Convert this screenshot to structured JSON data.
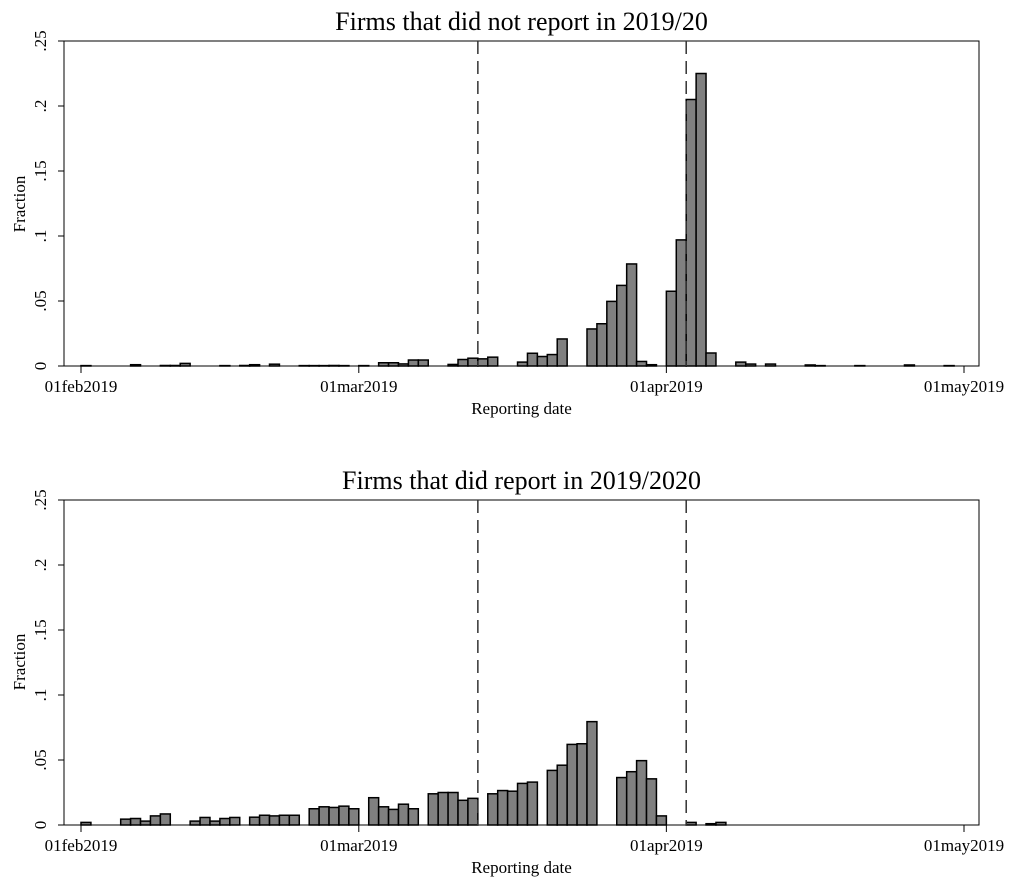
{
  "chart_data": [
    {
      "type": "bar",
      "title": "Firms that did not report in 2019/20",
      "xlabel": "Reporting date",
      "ylabel": "Fraction",
      "ylim": [
        0,
        0.25
      ],
      "yticks": [
        0,
        0.05,
        0.1,
        0.15,
        0.2,
        0.25
      ],
      "ytick_labels": [
        "0",
        ".05",
        ".1",
        ".15",
        ".2",
        ".25"
      ],
      "xlim": [
        "2019-02-01",
        "2019-05-01"
      ],
      "xticks": [
        "2019-02-01",
        "2019-03-01",
        "2019-04-01",
        "2019-05-01"
      ],
      "xtick_labels": [
        "01feb2019",
        "01mar2019",
        "01apr2019",
        "01may2019"
      ],
      "reference_lines": [
        "2019-03-13",
        "2019-04-03"
      ],
      "bar_color": "#808080",
      "x": [
        "2019-02-01",
        "2019-02-02",
        "2019-02-03",
        "2019-02-04",
        "2019-02-05",
        "2019-02-06",
        "2019-02-07",
        "2019-02-08",
        "2019-02-09",
        "2019-02-10",
        "2019-02-11",
        "2019-02-12",
        "2019-02-13",
        "2019-02-14",
        "2019-02-15",
        "2019-02-16",
        "2019-02-17",
        "2019-02-18",
        "2019-02-19",
        "2019-02-20",
        "2019-02-21",
        "2019-02-22",
        "2019-02-23",
        "2019-02-24",
        "2019-02-25",
        "2019-02-26",
        "2019-02-27",
        "2019-02-28",
        "2019-03-01",
        "2019-03-02",
        "2019-03-03",
        "2019-03-04",
        "2019-03-05",
        "2019-03-06",
        "2019-03-07",
        "2019-03-08",
        "2019-03-09",
        "2019-03-10",
        "2019-03-11",
        "2019-03-12",
        "2019-03-13",
        "2019-03-14",
        "2019-03-15",
        "2019-03-16",
        "2019-03-17",
        "2019-03-18",
        "2019-03-19",
        "2019-03-20",
        "2019-03-21",
        "2019-03-22",
        "2019-03-23",
        "2019-03-24",
        "2019-03-25",
        "2019-03-26",
        "2019-03-27",
        "2019-03-28",
        "2019-03-29",
        "2019-03-30",
        "2019-03-31",
        "2019-04-01",
        "2019-04-02",
        "2019-04-03",
        "2019-04-04",
        "2019-04-05",
        "2019-04-06",
        "2019-04-07",
        "2019-04-08",
        "2019-04-09",
        "2019-04-10",
        "2019-04-11",
        "2019-04-12",
        "2019-04-13",
        "2019-04-14",
        "2019-04-15",
        "2019-04-16",
        "2019-04-17",
        "2019-04-18",
        "2019-04-19",
        "2019-04-20",
        "2019-04-21",
        "2019-04-22",
        "2019-04-23",
        "2019-04-24",
        "2019-04-25",
        "2019-04-26",
        "2019-04-27",
        "2019-04-28",
        "2019-04-29",
        "2019-04-30"
      ],
      "values": [
        0.0003,
        0,
        0,
        0,
        0,
        0.001,
        0,
        0,
        0.0004,
        0.0004,
        0.002,
        0,
        0,
        0,
        0.0003,
        0,
        0.0004,
        0.001,
        0,
        0.0014,
        0,
        0,
        0.0003,
        0.0003,
        0.0003,
        0.0004,
        0.0003,
        0,
        0.0003,
        0,
        0.0025,
        0.0025,
        0.0016,
        0.0046,
        0.0046,
        0,
        0,
        0.0012,
        0.005,
        0.006,
        0.0055,
        0.0068,
        0,
        0,
        0.003,
        0.0098,
        0.0073,
        0.0088,
        0.0208,
        0,
        0,
        0.0285,
        0.0325,
        0.0497,
        0.062,
        0.0785,
        0.0035,
        0.001,
        0,
        0.0575,
        0.097,
        0.205,
        0.225,
        0.01,
        0,
        0,
        0.003,
        0.0015,
        0,
        0.0015,
        0,
        0,
        0,
        0.0008,
        0.0003,
        0,
        0,
        0,
        0.0003,
        0,
        0,
        0,
        0,
        0.0008,
        0,
        0,
        0,
        0.0003,
        0
      ]
    },
    {
      "type": "bar",
      "title": "Firms that did report in 2019/2020",
      "xlabel": "Reporting date",
      "ylabel": "Fraction",
      "ylim": [
        0,
        0.25
      ],
      "yticks": [
        0,
        0.05,
        0.1,
        0.15,
        0.2,
        0.25
      ],
      "ytick_labels": [
        "0",
        ".05",
        ".1",
        ".15",
        ".2",
        ".25"
      ],
      "xlim": [
        "2019-02-01",
        "2019-05-01"
      ],
      "xticks": [
        "2019-02-01",
        "2019-03-01",
        "2019-04-01",
        "2019-05-01"
      ],
      "xtick_labels": [
        "01feb2019",
        "01mar2019",
        "01apr2019",
        "01may2019"
      ],
      "reference_lines": [
        "2019-03-13",
        "2019-04-03"
      ],
      "bar_color": "#808080",
      "x": [
        "2019-02-01",
        "2019-02-02",
        "2019-02-03",
        "2019-02-04",
        "2019-02-05",
        "2019-02-06",
        "2019-02-07",
        "2019-02-08",
        "2019-02-09",
        "2019-02-10",
        "2019-02-11",
        "2019-02-12",
        "2019-02-13",
        "2019-02-14",
        "2019-02-15",
        "2019-02-16",
        "2019-02-17",
        "2019-02-18",
        "2019-02-19",
        "2019-02-20",
        "2019-02-21",
        "2019-02-22",
        "2019-02-23",
        "2019-02-24",
        "2019-02-25",
        "2019-02-26",
        "2019-02-27",
        "2019-02-28",
        "2019-03-01",
        "2019-03-02",
        "2019-03-03",
        "2019-03-04",
        "2019-03-05",
        "2019-03-06",
        "2019-03-07",
        "2019-03-08",
        "2019-03-09",
        "2019-03-10",
        "2019-03-11",
        "2019-03-12",
        "2019-03-13",
        "2019-03-14",
        "2019-03-15",
        "2019-03-16",
        "2019-03-17",
        "2019-03-18",
        "2019-03-19",
        "2019-03-20",
        "2019-03-21",
        "2019-03-22",
        "2019-03-23",
        "2019-03-24",
        "2019-03-25",
        "2019-03-26",
        "2019-03-27",
        "2019-03-28",
        "2019-03-29",
        "2019-03-30",
        "2019-03-31",
        "2019-04-01",
        "2019-04-02",
        "2019-04-03",
        "2019-04-04",
        "2019-04-05",
        "2019-04-06",
        "2019-04-07",
        "2019-04-08",
        "2019-04-09",
        "2019-04-10",
        "2019-04-11",
        "2019-04-12",
        "2019-04-13",
        "2019-04-14",
        "2019-04-15",
        "2019-04-16",
        "2019-04-17",
        "2019-04-18",
        "2019-04-19",
        "2019-04-20",
        "2019-04-21",
        "2019-04-22",
        "2019-04-23",
        "2019-04-24",
        "2019-04-25",
        "2019-04-26",
        "2019-04-27",
        "2019-04-28",
        "2019-04-29",
        "2019-04-30"
      ],
      "values": [
        0.002,
        0,
        0,
        0,
        0.0045,
        0.005,
        0.003,
        0.007,
        0.0085,
        0,
        0,
        0.003,
        0.0058,
        0.003,
        0.005,
        0.0058,
        0,
        0.006,
        0.0075,
        0.007,
        0.0075,
        0.0075,
        0,
        0.0125,
        0.014,
        0.0135,
        0.0145,
        0.0125,
        0,
        0.021,
        0.014,
        0.012,
        0.016,
        0.0125,
        0,
        0.024,
        0.025,
        0.025,
        0.019,
        0.0205,
        0,
        0.024,
        0.0265,
        0.026,
        0.032,
        0.033,
        0,
        0.042,
        0.046,
        0.062,
        0.0625,
        0.0795,
        0,
        0,
        0.0365,
        0.041,
        0.0495,
        0.0355,
        0.007,
        0,
        0,
        0.002,
        0,
        0.001,
        0.002,
        0,
        0,
        0,
        0,
        0,
        0,
        0,
        0,
        0,
        0,
        0,
        0,
        0,
        0,
        0,
        0,
        0,
        0,
        0,
        0,
        0,
        0,
        0,
        0
      ]
    }
  ]
}
